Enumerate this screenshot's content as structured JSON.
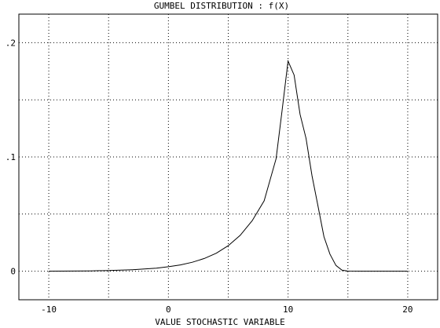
{
  "chart_data": {
    "type": "line",
    "title": "GUMBEL DISTRIBUTION   : f(X)",
    "xlabel": "VALUE STOCHASTIC VARIABLE",
    "ylabel": "",
    "xlim": [
      -12.5,
      22.5
    ],
    "ylim": [
      -0.025,
      0.225
    ],
    "x_ticks": [
      -10,
      -5,
      0,
      5,
      10,
      15,
      20
    ],
    "x_tick_labels": [
      "-10",
      "0",
      "10",
      "20"
    ],
    "x_tick_label_values": [
      -10,
      0,
      10,
      20
    ],
    "y_ticks": [
      0,
      0.05,
      0.1,
      0.15,
      0.2
    ],
    "y_tick_labels": [
      ".2",
      ".1",
      "0"
    ],
    "y_tick_label_values": [
      0.2,
      0.1,
      0
    ],
    "grid": true,
    "series": [
      {
        "color": "#000000",
        "x": [
          -10,
          -6.5,
          -5,
          -4,
          -3,
          -2,
          -1,
          0,
          1,
          2,
          3,
          4,
          5,
          6,
          7,
          8,
          9,
          9.5,
          10,
          10.5,
          11,
          11.5,
          12,
          12.5,
          13,
          13.5,
          14,
          14.5,
          15,
          16,
          20
        ],
        "y": [
          0,
          0.0003,
          0.0006,
          0.0009,
          0.0013,
          0.0019,
          0.0027,
          0.0039,
          0.0055,
          0.0078,
          0.0111,
          0.0157,
          0.0223,
          0.0314,
          0.0442,
          0.0616,
          0.0985,
          0.1405,
          0.1839,
          0.1717,
          0.1373,
          0.1163,
          0.0835,
          0.0571,
          0.0302,
          0.015,
          0.005,
          0.0009,
          0.0001,
          0,
          0
        ]
      }
    ]
  }
}
